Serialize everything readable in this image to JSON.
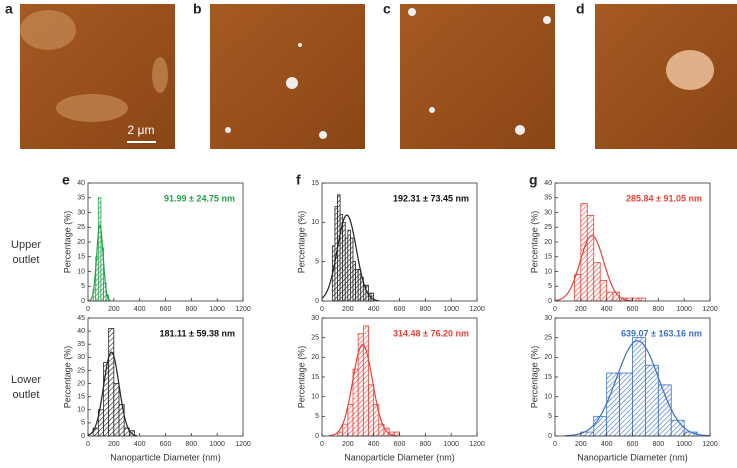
{
  "images": [
    {
      "label": "a"
    },
    {
      "label": "b"
    },
    {
      "label": "c"
    },
    {
      "label": "d"
    }
  ],
  "scale_bar": "2 μm",
  "row_labels": [
    "Upper outlet",
    "Lower outlet"
  ],
  "chart_data": [
    {
      "type": "histogram",
      "panel": "e",
      "color": "#22a04b",
      "annotation": "91.99 ± 24.75 nm",
      "annotation_color": "#22a04b",
      "bins": [
        40,
        60,
        80,
        100,
        120,
        140,
        160
      ],
      "values": [
        4,
        15,
        35,
        18,
        6,
        2
      ],
      "fit": {
        "mean": 91.99,
        "sd": 24.75
      },
      "xlim": [
        0,
        1200
      ],
      "xticks": [
        0,
        200,
        400,
        600,
        800,
        1000,
        1200
      ],
      "ylim": [
        0,
        40
      ],
      "yticks": [
        0,
        5,
        10,
        15,
        20,
        25,
        30,
        35,
        40
      ],
      "ylabel": "Percentage (%)"
    },
    {
      "type": "histogram",
      "panel": "f",
      "color": "#222222",
      "annotation": "192.31 ± 73.45 nm",
      "annotation_color": "#111111",
      "bins": [
        80,
        100,
        120,
        140,
        160,
        180,
        200,
        220,
        240,
        260,
        280,
        300,
        320,
        340,
        360,
        380,
        400
      ],
      "values": [
        7,
        12,
        13.5,
        11,
        10,
        8,
        9,
        8,
        5,
        4,
        4,
        3,
        2,
        2,
        1,
        1
      ],
      "fit": {
        "mean": 192.31,
        "sd": 73.45
      },
      "xlim": [
        0,
        1200
      ],
      "xticks": [
        0,
        200,
        400,
        600,
        800,
        1000,
        1200
      ],
      "ylim": [
        0,
        15
      ],
      "yticks": [
        0,
        5,
        10,
        15
      ],
      "ylabel": "Percentage (%)"
    },
    {
      "type": "histogram",
      "panel": "g",
      "color": "#e8423a",
      "annotation": "285.84 ± 91.05 nm",
      "annotation_color": "#e8423a",
      "bins": [
        150,
        200,
        250,
        300,
        350,
        400,
        450,
        500,
        550,
        600,
        650,
        700
      ],
      "values": [
        9,
        33,
        29,
        13,
        7,
        3,
        3,
        1,
        1,
        1,
        1
      ],
      "fit": {
        "mean": 285.84,
        "sd": 91.05
      },
      "xlim": [
        0,
        1200
      ],
      "xticks": [
        0,
        200,
        400,
        600,
        800,
        1000,
        1200
      ],
      "ylim": [
        0,
        40
      ],
      "yticks": [
        0,
        5,
        10,
        15,
        20,
        25,
        30,
        35,
        40
      ],
      "ylabel": "Percentage (%)"
    },
    {
      "type": "histogram",
      "color": "#222222",
      "annotation": "181.11 ± 59.38 nm",
      "annotation_color": "#111111",
      "bins": [
        40,
        80,
        120,
        160,
        200,
        240,
        280,
        320,
        360
      ],
      "values": [
        3,
        10,
        28,
        41,
        20,
        12,
        3,
        2
      ],
      "fit": {
        "mean": 181.11,
        "sd": 59.38
      },
      "xlim": [
        0,
        1200
      ],
      "xticks": [
        0,
        200,
        400,
        600,
        800,
        1000,
        1200
      ],
      "ylim": [
        0,
        45
      ],
      "yticks": [
        0,
        5,
        10,
        15,
        20,
        25,
        30,
        35,
        40,
        45
      ],
      "ylabel": "Percentage (%)",
      "xlabel": "Nanoparticle Diameter (nm)"
    },
    {
      "type": "histogram",
      "color": "#e8423a",
      "annotation": "314.48 ± 76.20 nm",
      "annotation_color": "#e8423a",
      "bins": [
        120,
        160,
        200,
        240,
        280,
        320,
        360,
        400,
        440,
        480,
        520,
        560,
        600
      ],
      "values": [
        1,
        3,
        8,
        17,
        26,
        28,
        13,
        8,
        3,
        2,
        1,
        1
      ],
      "fit": {
        "mean": 314.48,
        "sd": 76.2
      },
      "xlim": [
        0,
        1200
      ],
      "xticks": [
        0,
        200,
        400,
        600,
        800,
        1000,
        1200
      ],
      "ylim": [
        0,
        30
      ],
      "yticks": [
        0,
        5,
        10,
        15,
        20,
        25,
        30
      ],
      "ylabel": "Percentage (%)",
      "xlabel": "Nanoparticle Diameter (nm)"
    },
    {
      "type": "histogram",
      "color": "#3a6fc4",
      "annotation": "639.07 ± 163.16 nm",
      "annotation_color": "#3a6fc4",
      "bins": [
        200,
        300,
        400,
        500,
        600,
        700,
        800,
        900,
        1000,
        1100
      ],
      "values": [
        1,
        5,
        16,
        16,
        25,
        18,
        13,
        4,
        1
      ],
      "fit": {
        "mean": 639.07,
        "sd": 163.16
      },
      "xlim": [
        0,
        1200
      ],
      "xticks": [
        0,
        200,
        400,
        600,
        800,
        1000,
        1200
      ],
      "ylim": [
        0,
        30
      ],
      "yticks": [
        0,
        5,
        10,
        15,
        20,
        25,
        30
      ],
      "ylabel": "Percentage (%)",
      "xlabel": "Nanoparticle Diameter (nm)"
    }
  ]
}
